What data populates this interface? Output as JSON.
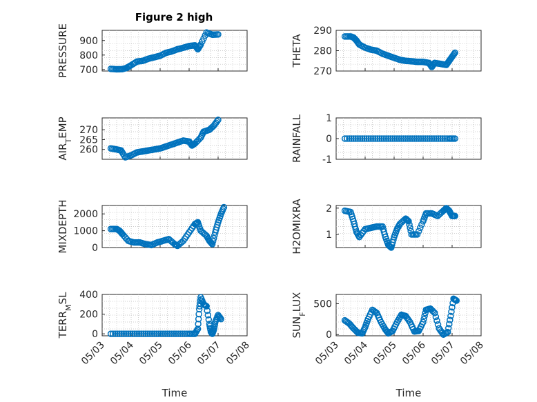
{
  "figure": {
    "title": "Figure 2 high",
    "marker_color": "#0072BD"
  },
  "chart_data": [
    {
      "id": "pressure",
      "type": "scatter",
      "title": "Figure 2 high",
      "ylabel": "PRESSURE",
      "ylabel_sub": "",
      "ylim": [
        690,
        970
      ],
      "yticks": [
        700,
        800,
        900
      ],
      "yticklabels": [
        "700",
        "800",
        "900"
      ],
      "xlim": [
        0,
        5
      ],
      "xticks": [
        0,
        1,
        2,
        3,
        4,
        5
      ],
      "xticklabels": [],
      "xlabel": "",
      "grid": true,
      "points": [
        [
          0.3,
          705
        ],
        [
          0.5,
          702
        ],
        [
          0.7,
          703
        ],
        [
          0.85,
          712
        ],
        [
          1.0,
          730
        ],
        [
          1.2,
          755
        ],
        [
          1.4,
          760
        ],
        [
          1.6,
          775
        ],
        [
          1.8,
          785
        ],
        [
          2.0,
          795
        ],
        [
          2.2,
          815
        ],
        [
          2.4,
          825
        ],
        [
          2.6,
          840
        ],
        [
          2.8,
          850
        ],
        [
          3.0,
          862
        ],
        [
          3.2,
          867
        ],
        [
          3.3,
          840
        ],
        [
          3.4,
          872
        ],
        [
          3.6,
          955
        ],
        [
          3.8,
          940
        ],
        [
          4.0,
          942
        ]
      ]
    },
    {
      "id": "theta",
      "type": "scatter",
      "ylabel": "THETA",
      "ylabel_sub": "",
      "ylim": [
        270,
        290
      ],
      "yticks": [
        270,
        280,
        290
      ],
      "yticklabels": [
        "270",
        "280",
        "290"
      ],
      "xlim": [
        0,
        5
      ],
      "xticks": [
        0,
        1,
        2,
        3,
        4,
        5
      ],
      "xticklabels": [],
      "xlabel": "",
      "grid": true,
      "points": [
        [
          0.3,
          287
        ],
        [
          0.5,
          287
        ],
        [
          0.6,
          286.5
        ],
        [
          0.7,
          285
        ],
        [
          0.8,
          283
        ],
        [
          1.0,
          281.5
        ],
        [
          1.2,
          280.5
        ],
        [
          1.4,
          280
        ],
        [
          1.6,
          278.5
        ],
        [
          1.8,
          277.5
        ],
        [
          2.0,
          276.5
        ],
        [
          2.2,
          275.5
        ],
        [
          2.4,
          275
        ],
        [
          2.6,
          274.8
        ],
        [
          2.8,
          274.5
        ],
        [
          3.0,
          274.5
        ],
        [
          3.2,
          274
        ],
        [
          3.3,
          272
        ],
        [
          3.4,
          274
        ],
        [
          3.6,
          273.5
        ],
        [
          3.8,
          273
        ],
        [
          3.9,
          275
        ],
        [
          4.0,
          277
        ],
        [
          4.1,
          279
        ]
      ]
    },
    {
      "id": "air_temp",
      "type": "scatter",
      "ylabel": "AIR",
      "ylabel_sub": "T",
      "ylabel_tail": "EMP",
      "ylim": [
        255,
        276
      ],
      "yticks": [
        260,
        265,
        270
      ],
      "yticklabels": [
        "260",
        "265",
        "270"
      ],
      "xlim": [
        0,
        5
      ],
      "xticks": [
        0,
        1,
        2,
        3,
        4,
        5
      ],
      "xticklabels": [],
      "xlabel": "",
      "grid": true,
      "points": [
        [
          0.3,
          260.5
        ],
        [
          0.5,
          260
        ],
        [
          0.65,
          259.5
        ],
        [
          0.8,
          256
        ],
        [
          1.0,
          257
        ],
        [
          1.2,
          258.5
        ],
        [
          1.4,
          259
        ],
        [
          1.6,
          259.5
        ],
        [
          1.8,
          260
        ],
        [
          2.0,
          260.5
        ],
        [
          2.2,
          261.5
        ],
        [
          2.4,
          262.5
        ],
        [
          2.6,
          263.5
        ],
        [
          2.8,
          264.5
        ],
        [
          3.0,
          264
        ],
        [
          3.1,
          262
        ],
        [
          3.2,
          263
        ],
        [
          3.4,
          266
        ],
        [
          3.5,
          269
        ],
        [
          3.7,
          270
        ],
        [
          3.85,
          272
        ],
        [
          4.0,
          275
        ]
      ]
    },
    {
      "id": "rainfall",
      "type": "scatter",
      "ylabel": "RAINFALL",
      "ylabel_sub": "",
      "ylim": [
        -1,
        1
      ],
      "yticks": [
        -1,
        0,
        1
      ],
      "yticklabels": [
        "-1",
        "0",
        "1"
      ],
      "xlim": [
        0,
        5
      ],
      "xticks": [
        0,
        1,
        2,
        3,
        4,
        5
      ],
      "xticklabels": [],
      "xlabel": "",
      "grid": true,
      "points": [
        [
          0.3,
          0
        ],
        [
          0.6,
          0
        ],
        [
          0.9,
          0
        ],
        [
          1.2,
          0
        ],
        [
          1.5,
          0
        ],
        [
          1.8,
          0
        ],
        [
          2.1,
          0
        ],
        [
          2.4,
          0
        ],
        [
          2.7,
          0
        ],
        [
          3.0,
          0
        ],
        [
          3.3,
          0
        ],
        [
          3.6,
          0
        ],
        [
          3.9,
          0
        ],
        [
          4.1,
          0
        ]
      ]
    },
    {
      "id": "mixdepth",
      "type": "scatter",
      "ylabel": "MIXDEPTH",
      "ylabel_sub": "",
      "ylim": [
        0,
        2500
      ],
      "yticks": [
        0,
        1000,
        2000
      ],
      "yticklabels": [
        "0",
        "1000",
        "2000"
      ],
      "xlim": [
        0,
        5
      ],
      "xticks": [
        0,
        1,
        2,
        3,
        4,
        5
      ],
      "xticklabels": [],
      "xlabel": "",
      "grid": true,
      "points": [
        [
          0.3,
          1100
        ],
        [
          0.5,
          1100
        ],
        [
          0.6,
          1000
        ],
        [
          0.7,
          800
        ],
        [
          0.9,
          400
        ],
        [
          1.1,
          300
        ],
        [
          1.3,
          300
        ],
        [
          1.5,
          200
        ],
        [
          1.7,
          150
        ],
        [
          1.9,
          300
        ],
        [
          2.1,
          400
        ],
        [
          2.3,
          500
        ],
        [
          2.5,
          200
        ],
        [
          2.6,
          100
        ],
        [
          2.8,
          400
        ],
        [
          3.0,
          900
        ],
        [
          3.2,
          1400
        ],
        [
          3.3,
          1500
        ],
        [
          3.4,
          1000
        ],
        [
          3.6,
          700
        ],
        [
          3.7,
          400
        ],
        [
          3.8,
          200
        ],
        [
          3.9,
          900
        ],
        [
          4.0,
          1500
        ],
        [
          4.1,
          2000
        ],
        [
          4.2,
          2400
        ]
      ]
    },
    {
      "id": "h2omixra",
      "type": "scatter",
      "ylabel": "H2OMIXRA",
      "ylabel_sub": "",
      "ylim": [
        0.5,
        2.1
      ],
      "yticks": [
        1,
        2
      ],
      "yticklabels": [
        "1",
        "2"
      ],
      "xlim": [
        0,
        5
      ],
      "xticks": [
        0,
        1,
        2,
        3,
        4,
        5
      ],
      "xticklabels": [],
      "xlabel": "",
      "grid": true,
      "points": [
        [
          0.3,
          1.9
        ],
        [
          0.5,
          1.85
        ],
        [
          0.6,
          1.5
        ],
        [
          0.7,
          1.1
        ],
        [
          0.8,
          0.9
        ],
        [
          1.0,
          1.2
        ],
        [
          1.2,
          1.25
        ],
        [
          1.4,
          1.3
        ],
        [
          1.6,
          1.3
        ],
        [
          1.7,
          0.9
        ],
        [
          1.8,
          0.6
        ],
        [
          1.9,
          0.5
        ],
        [
          2.0,
          0.9
        ],
        [
          2.1,
          1.2
        ],
        [
          2.2,
          1.4
        ],
        [
          2.4,
          1.6
        ],
        [
          2.5,
          1.5
        ],
        [
          2.6,
          1.0
        ],
        [
          2.8,
          1.0
        ],
        [
          3.0,
          1.5
        ],
        [
          3.1,
          1.8
        ],
        [
          3.3,
          1.8
        ],
        [
          3.5,
          1.7
        ],
        [
          3.7,
          1.9
        ],
        [
          3.8,
          2.0
        ],
        [
          3.9,
          1.9
        ],
        [
          4.0,
          1.7
        ],
        [
          4.1,
          1.7
        ]
      ]
    },
    {
      "id": "terr_msl",
      "type": "scatter",
      "ylabel": "TERR",
      "ylabel_sub": "M",
      "ylabel_tail": "SL",
      "ylim": [
        -20,
        400
      ],
      "yticks": [
        0,
        200,
        400
      ],
      "yticklabels": [
        "0",
        "200",
        "400"
      ],
      "xlim": [
        0,
        5
      ],
      "xticks": [
        0,
        1,
        2,
        3,
        4,
        5
      ],
      "xticklabels": [
        "05/03",
        "05/04",
        "05/05",
        "05/06",
        "05/07",
        "05/08"
      ],
      "xlabel": "Time",
      "grid": true,
      "points": [
        [
          0.3,
          0
        ],
        [
          0.6,
          0
        ],
        [
          0.9,
          0
        ],
        [
          1.2,
          0
        ],
        [
          1.5,
          0
        ],
        [
          1.8,
          0
        ],
        [
          2.1,
          0
        ],
        [
          2.4,
          0
        ],
        [
          2.7,
          0
        ],
        [
          3.0,
          0
        ],
        [
          3.2,
          0
        ],
        [
          3.3,
          50
        ],
        [
          3.35,
          250
        ],
        [
          3.4,
          370
        ],
        [
          3.5,
          300
        ],
        [
          3.6,
          280
        ],
        [
          3.7,
          100
        ],
        [
          3.75,
          20
        ],
        [
          3.8,
          0
        ],
        [
          3.85,
          40
        ],
        [
          3.9,
          120
        ],
        [
          4.0,
          190
        ],
        [
          4.1,
          150
        ]
      ]
    },
    {
      "id": "sun_flux",
      "type": "scatter",
      "ylabel": "SUN",
      "ylabel_sub": "F",
      "ylabel_tail": "LUX",
      "ylim": [
        -20,
        650
      ],
      "yticks": [
        0,
        500
      ],
      "yticklabels": [
        "0",
        "500"
      ],
      "xlim": [
        0,
        5
      ],
      "xticks": [
        0,
        1,
        2,
        3,
        4,
        5
      ],
      "xticklabels": [
        "05/03",
        "05/04",
        "05/05",
        "05/06",
        "05/07",
        "05/08"
      ],
      "xlabel": "Time",
      "grid": true,
      "points": [
        [
          0.3,
          230
        ],
        [
          0.45,
          180
        ],
        [
          0.6,
          100
        ],
        [
          0.75,
          30
        ],
        [
          0.9,
          20
        ],
        [
          1.0,
          120
        ],
        [
          1.1,
          250
        ],
        [
          1.25,
          400
        ],
        [
          1.4,
          350
        ],
        [
          1.55,
          200
        ],
        [
          1.7,
          80
        ],
        [
          1.8,
          20
        ],
        [
          1.95,
          60
        ],
        [
          2.1,
          200
        ],
        [
          2.25,
          320
        ],
        [
          2.4,
          300
        ],
        [
          2.55,
          200
        ],
        [
          2.7,
          50
        ],
        [
          2.85,
          60
        ],
        [
          3.0,
          200
        ],
        [
          3.1,
          400
        ],
        [
          3.25,
          420
        ],
        [
          3.4,
          350
        ],
        [
          3.55,
          100
        ],
        [
          3.7,
          0
        ],
        [
          3.85,
          40
        ],
        [
          3.95,
          300
        ],
        [
          4.05,
          580
        ],
        [
          4.15,
          550
        ]
      ]
    }
  ]
}
